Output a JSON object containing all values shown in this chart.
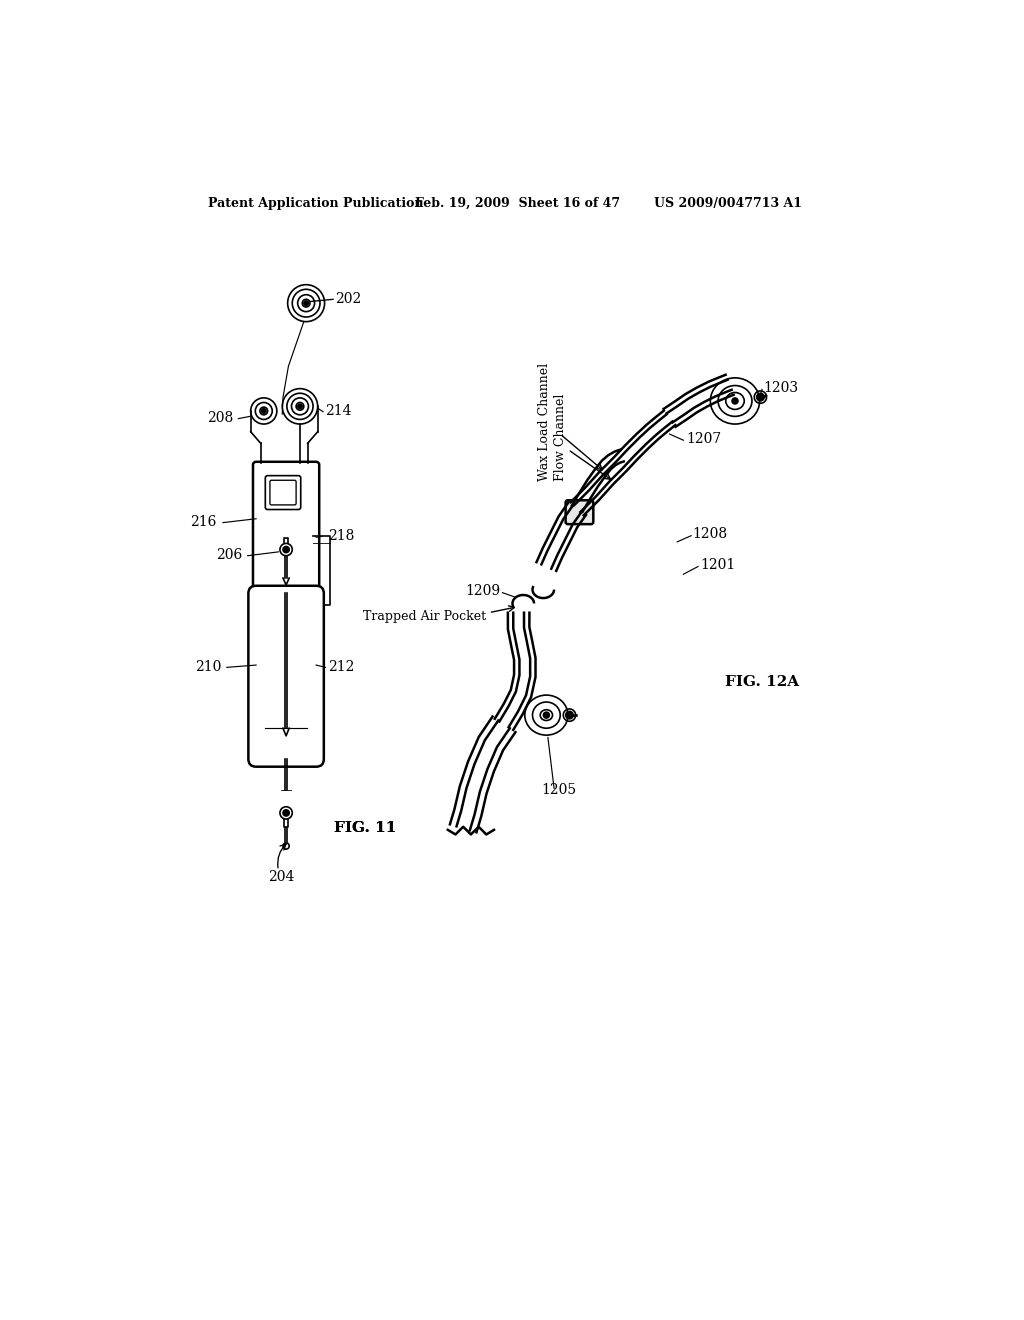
{
  "bg_color": "#ffffff",
  "header_left": "Patent Application Publication",
  "header_mid": "Feb. 19, 2009  Sheet 16 of 47",
  "header_right": "US 2009/0047713 A1",
  "fig11_label": "FIG. 11",
  "fig12a_label": "FIG. 12A",
  "line_color": "#000000",
  "lw_main": 1.8,
  "lw_thin": 1.2,
  "fontsize_label": 10,
  "fontsize_fig": 11
}
